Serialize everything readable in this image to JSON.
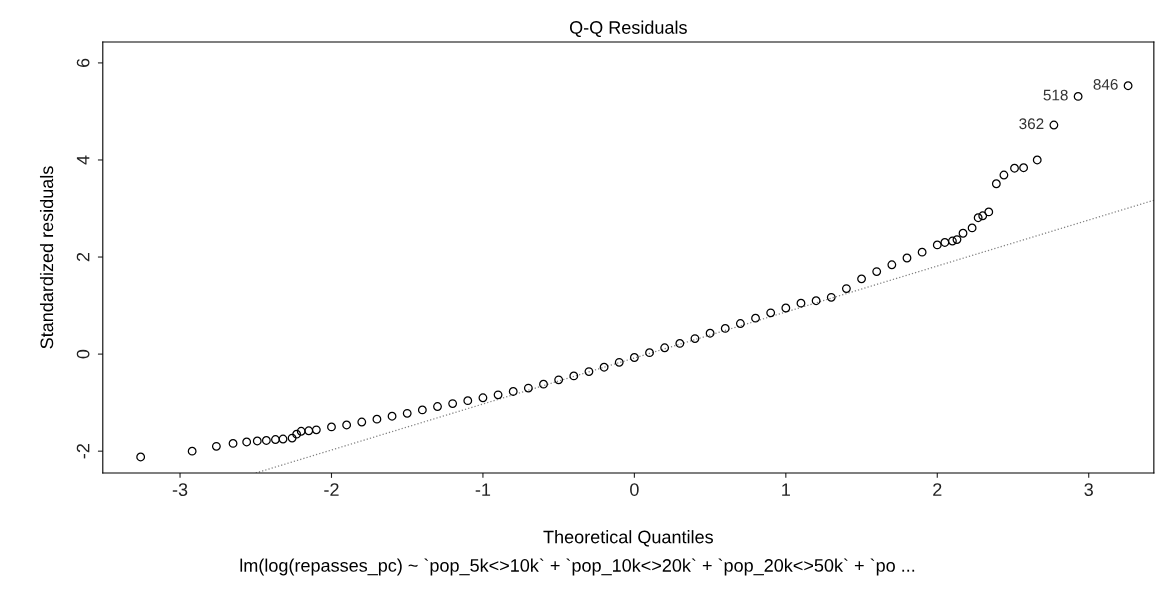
{
  "chart_data": {
    "type": "scatter",
    "title": "Q-Q Residuals",
    "xlabel": "Theoretical Quantiles",
    "ylabel": "Standardized residuals",
    "xlim": [
      -3.51,
      3.43
    ],
    "ylim": [
      -2.45,
      6.43
    ],
    "xticks": [
      -3,
      -2,
      -1,
      0,
      1,
      2,
      3
    ],
    "yticks": [
      -2,
      0,
      2,
      4,
      6
    ],
    "grid": false,
    "series": [
      {
        "marker": "circle",
        "color": "#000000",
        "x": [
          -3.26,
          -2.92,
          -2.76,
          -2.65,
          -2.56,
          -2.49,
          -2.43,
          -2.37,
          -2.32,
          -2.26,
          -2.23,
          -2.2,
          -2.15,
          -2.1,
          -2.0,
          -1.9,
          -1.8,
          -1.7,
          -1.6,
          -1.5,
          -1.4,
          -1.3,
          -1.2,
          -1.1,
          -1.0,
          -0.9,
          -0.8,
          -0.7,
          -0.6,
          -0.5,
          -0.4,
          -0.3,
          -0.2,
          -0.1,
          0.0,
          0.1,
          0.2,
          0.3,
          0.4,
          0.5,
          0.6,
          0.7,
          0.8,
          0.9,
          1.0,
          1.1,
          1.2,
          1.3,
          1.4,
          1.5,
          1.6,
          1.7,
          1.8,
          1.9,
          2.0,
          2.05,
          2.1,
          2.13,
          2.17,
          2.23,
          2.27,
          2.3,
          2.34,
          2.39,
          2.44,
          2.51,
          2.57,
          2.66,
          2.77,
          2.93,
          3.26
        ],
        "values": [
          -2.12,
          -2.0,
          -1.9,
          -1.84,
          -1.81,
          -1.79,
          -1.78,
          -1.76,
          -1.75,
          -1.73,
          -1.65,
          -1.59,
          -1.58,
          -1.56,
          -1.5,
          -1.46,
          -1.4,
          -1.34,
          -1.28,
          -1.22,
          -1.15,
          -1.08,
          -1.02,
          -0.96,
          -0.9,
          -0.84,
          -0.77,
          -0.7,
          -0.62,
          -0.53,
          -0.45,
          -0.36,
          -0.27,
          -0.17,
          -0.07,
          0.03,
          0.13,
          0.22,
          0.32,
          0.43,
          0.53,
          0.63,
          0.74,
          0.85,
          0.95,
          1.05,
          1.1,
          1.17,
          1.35,
          1.55,
          1.7,
          1.84,
          1.98,
          2.1,
          2.25,
          2.3,
          2.33,
          2.36,
          2.49,
          2.6,
          2.81,
          2.85,
          2.93,
          3.51,
          3.69,
          3.83,
          3.84,
          4.0,
          4.72,
          5.31,
          5.53
        ]
      },
      {
        "type": "line",
        "color": "#808080",
        "line_style": "dotted",
        "x": [
          -2.5,
          3.43
        ],
        "values": [
          -2.45,
          3.17
        ]
      }
    ],
    "annotations": [
      {
        "text": "362",
        "x": 2.77,
        "y": 4.72
      },
      {
        "text": "518",
        "x": 2.93,
        "y": 5.31
      },
      {
        "text": "846",
        "x": 3.26,
        "y": 5.53
      },
      "lm(log(repasses_pc) ~ `pop_5k<>10k` + `pop_10k<>20k` + `pop_20k<>50k` + `po ..."
    ]
  }
}
